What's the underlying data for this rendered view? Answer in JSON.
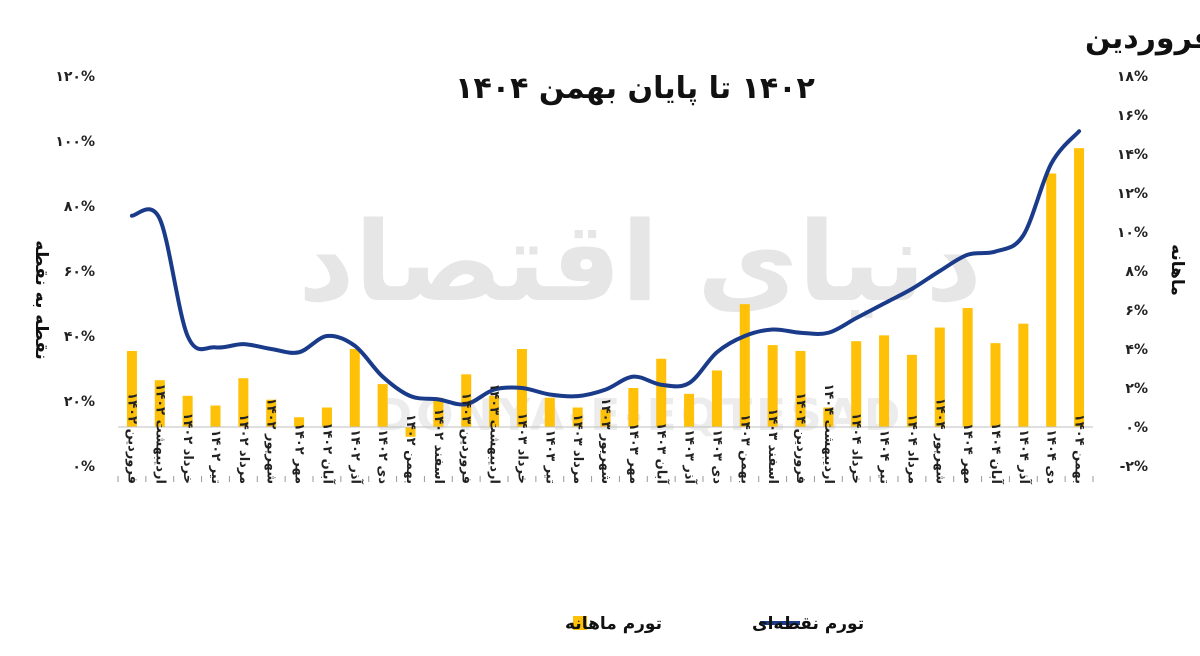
{
  "chart_data": {
    "type": "bar+line",
    "title_line1": "روند تورم ماهانه و نقطه‌ای کالاهای خوراکی و آشامیدنی از فروردین",
    "title_line2": "۱۴۰۲ تا پایان بهمن ۱۴۰۴",
    "left_axis_label": "نقطه به نقطه",
    "right_axis_label": "ماهانه",
    "left_ylim": [
      0,
      120
    ],
    "right_ylim": [
      -2,
      18
    ],
    "left_ticks": [
      "۱۲۰%",
      "۱۰۰%",
      "۸۰%",
      "۶۰%",
      "۴۰%",
      "۲۰%",
      "۰%"
    ],
    "left_tick_values": [
      120,
      100,
      80,
      60,
      40,
      20,
      0
    ],
    "right_ticks": [
      "۱۸%",
      "۱۶%",
      "۱۴%",
      "۱۲%",
      "۱۰%",
      "۸%",
      "۶%",
      "۴%",
      "۲%",
      "۰%",
      "-۲%"
    ],
    "right_tick_values": [
      18,
      16,
      14,
      12,
      10,
      8,
      6,
      4,
      2,
      0,
      -2
    ],
    "categories": [
      "فروردین ۱۴۰۲",
      "اردیبهشت ۱۴۰۲",
      "خرداد ۱۴۰۲",
      "تیر ۱۴۰۲",
      "مرداد ۱۴۰۲",
      "شهریور ۱۴۰۲",
      "مهر ۱۴۰۲",
      "آبان ۱۴۰۲",
      "آذر ۱۴۰۲",
      "دی ۱۴۰۲",
      "بهمن ۱۴۰۲",
      "اسفند ۱۴۰۲",
      "فروردین ۱۴۰۳",
      "اردیبهشت ۱۴۰۳",
      "خرداد ۱۴۰۳",
      "تیر ۱۴۰۳",
      "مرداد ۱۴۰۳",
      "شهریور ۱۴۰۳",
      "مهر ۱۴۰۳",
      "آبان ۱۴۰۳",
      "آذر ۱۴۰۳",
      "دی ۱۴۰۳",
      "بهمن ۱۴۰۳",
      "اسفند ۱۴۰۳",
      "فروردین ۱۴۰۴",
      "اردیبهشت ۱۴۰۴",
      "خرداد ۱۴۰۴",
      "تیر ۱۴۰۴",
      "مرداد ۱۴۰۴",
      "شهریور ۱۴۰۴",
      "مهر ۱۴۰۴",
      "آبان ۱۴۰۴",
      "آذر ۱۴۰۴",
      "دی ۱۴۰۴",
      "بهمن ۱۴۰۴"
    ],
    "series": [
      {
        "name": "تورم ماهانه",
        "type": "bar",
        "axis": "right",
        "color": "#FFC107",
        "values": [
          3.9,
          2.4,
          1.6,
          1.1,
          2.5,
          1.4,
          0.5,
          1.0,
          4.0,
          2.2,
          -0.5,
          1.5,
          2.7,
          1.6,
          4.0,
          1.5,
          1.0,
          0.9,
          2.0,
          3.5,
          1.7,
          2.9,
          6.3,
          4.2,
          3.9,
          1.0,
          4.4,
          4.7,
          3.7,
          5.1,
          6.1,
          4.3,
          5.3,
          13.0,
          14.3
        ]
      },
      {
        "name": "تورم نقطه‌ای",
        "type": "line",
        "axis": "left",
        "color": "#1A3A8A",
        "values": [
          77,
          76,
          40,
          36.5,
          37.5,
          36,
          35,
          40,
          37,
          27.5,
          21.5,
          20.5,
          19,
          23.5,
          24,
          22,
          21.5,
          23.5,
          27.5,
          25,
          25.5,
          35,
          40,
          42,
          41,
          41,
          45.5,
          50,
          54.5,
          60,
          65,
          66,
          71,
          93,
          103
        ]
      }
    ],
    "legend_position": "bottom",
    "grid": false
  },
  "watermark": {
    "text_fa": "دنیای اقتصاد",
    "text_en": "DONYA-E-EQTESAD"
  }
}
